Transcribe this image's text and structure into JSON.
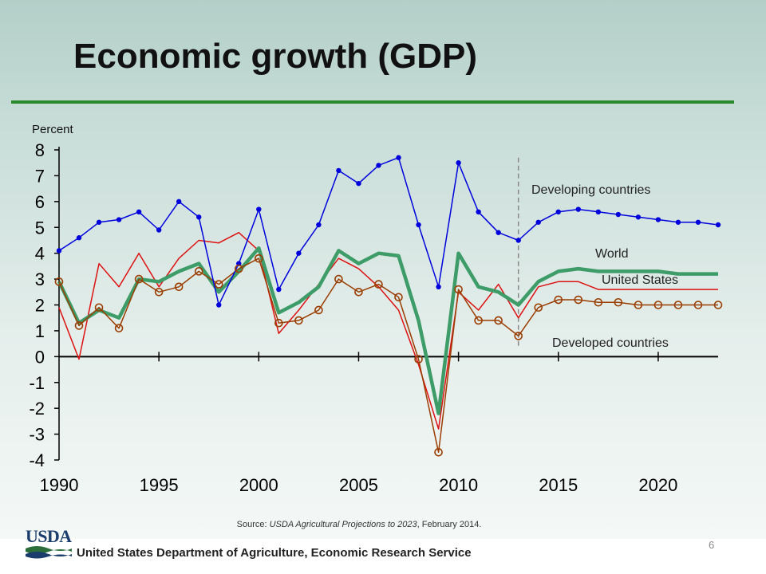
{
  "slide": {
    "title": "Economic growth (GDP)",
    "source_prefix": "Source: ",
    "source_title": "USDA Agricultural Projections to 2023",
    "source_suffix": ", February 2014.",
    "agency": "United States Department of Agriculture, Economic Research Service",
    "logo_text": "USDA",
    "page_number": "6",
    "accent_color": "#2c8a2c"
  },
  "chart_data": {
    "type": "line",
    "title": "Economic growth (GDP)",
    "ylabel": "Percent",
    "xlabel": "",
    "xlim": [
      1990,
      2023
    ],
    "ylim": [
      -4,
      8
    ],
    "x_ticks": [
      1990,
      1995,
      2000,
      2005,
      2010,
      2015,
      2020
    ],
    "y_ticks": [
      -4,
      -3,
      -2,
      -1,
      0,
      1,
      2,
      3,
      4,
      5,
      6,
      7,
      8
    ],
    "projection_start": 2013,
    "grid": false,
    "x": [
      1990,
      1991,
      1992,
      1993,
      1994,
      1995,
      1996,
      1997,
      1998,
      1999,
      2000,
      2001,
      2002,
      2003,
      2004,
      2005,
      2006,
      2007,
      2008,
      2009,
      2010,
      2011,
      2012,
      2013,
      2014,
      2015,
      2016,
      2017,
      2018,
      2019,
      2020,
      2021,
      2022,
      2023
    ],
    "series": [
      {
        "name": "Developing countries",
        "color": "#0000dd",
        "marker": "dot",
        "values": [
          4.1,
          4.6,
          5.2,
          5.3,
          5.6,
          4.9,
          6.0,
          5.4,
          2.0,
          3.6,
          5.7,
          2.6,
          4.0,
          5.1,
          7.2,
          6.7,
          7.4,
          7.7,
          5.1,
          2.7,
          7.5,
          5.6,
          4.8,
          4.5,
          5.2,
          5.6,
          5.7,
          5.6,
          5.5,
          5.4,
          5.3,
          5.2,
          5.2,
          5.1
        ]
      },
      {
        "name": "World",
        "color": "#3d9c68",
        "marker": "none",
        "values": [
          2.9,
          1.3,
          1.8,
          1.5,
          3.0,
          2.9,
          3.3,
          3.6,
          2.5,
          3.3,
          4.2,
          1.7,
          2.1,
          2.7,
          4.1,
          3.6,
          4.0,
          3.9,
          1.4,
          -2.2,
          4.0,
          2.7,
          2.5,
          2.0,
          2.9,
          3.3,
          3.4,
          3.3,
          3.3,
          3.3,
          3.3,
          3.2,
          3.2,
          3.2
        ]
      },
      {
        "name": "United States",
        "color": "#dd1111",
        "marker": "none",
        "values": [
          1.9,
          -0.1,
          3.6,
          2.7,
          4.0,
          2.7,
          3.8,
          4.5,
          4.4,
          4.8,
          4.1,
          0.9,
          1.8,
          2.8,
          3.8,
          3.4,
          2.7,
          1.8,
          -0.3,
          -2.8,
          2.5,
          1.8,
          2.8,
          1.5,
          2.7,
          2.9,
          2.9,
          2.6,
          2.6,
          2.6,
          2.6,
          2.6,
          2.6,
          2.6
        ]
      },
      {
        "name": "Developed countries",
        "color": "#9b3d00",
        "marker": "circle",
        "values": [
          2.9,
          1.2,
          1.9,
          1.1,
          3.0,
          2.5,
          2.7,
          3.3,
          2.8,
          3.4,
          3.8,
          1.3,
          1.4,
          1.8,
          3.0,
          2.5,
          2.8,
          2.3,
          -0.1,
          -3.7,
          2.6,
          1.4,
          1.4,
          0.8,
          1.9,
          2.2,
          2.2,
          2.1,
          2.1,
          2.0,
          2.0,
          2.0,
          2.0,
          2.0
        ]
      }
    ]
  }
}
